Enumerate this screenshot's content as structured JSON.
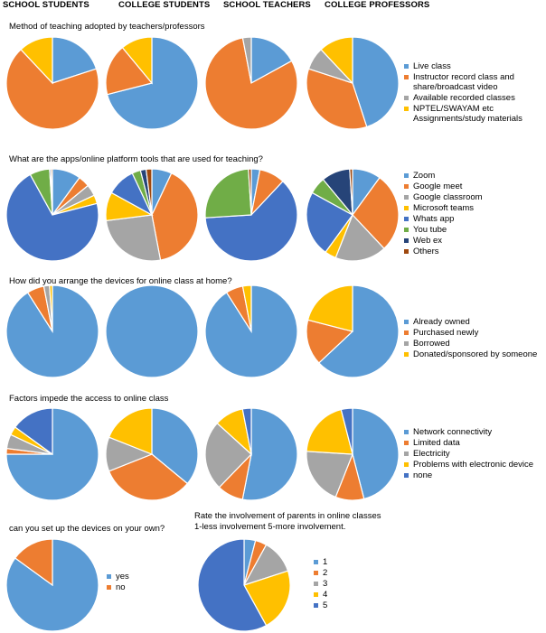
{
  "column_headers": [
    "SCHOOL  STUDENTS",
    "COLLEGE  STUDENTS",
    "SCHOOL  TEACHERS",
    "COLLEGE  PROFESSORS"
  ],
  "colors": [
    "#5b9bd5",
    "#ed7d31",
    "#a5a5a5",
    "#ffc000",
    "#4472c4",
    "#70ad47",
    "#264478",
    "#9e480e"
  ],
  "chart_data": [
    {
      "type": "pie",
      "title": "Method of teaching adopted by teachers/professors",
      "legend": [
        "Live class",
        "Instructor record class and\nshare/broadcast video",
        "Available recorded classes",
        "NPTEL/SWAYAM etc\nAssignments/study materials"
      ],
      "series": [
        {
          "name": "SCHOOL STUDENTS",
          "values": [
            20,
            68,
            0,
            12
          ]
        },
        {
          "name": "COLLEGE STUDENTS",
          "values": [
            71,
            18,
            0,
            11
          ]
        },
        {
          "name": "SCHOOL TEACHERS",
          "values": [
            17,
            80,
            3,
            0
          ]
        },
        {
          "name": "COLLEGE PROFESSORS",
          "values": [
            45,
            35,
            8,
            12
          ]
        }
      ]
    },
    {
      "type": "pie",
      "title": "What are the apps/online platform tools  that are used for teaching?",
      "legend": [
        "Zoom",
        "Google meet",
        "Google classroom",
        "Microsoft teams",
        "Whats app",
        "You tube",
        "Web ex",
        "Others"
      ],
      "series": [
        {
          "name": "SCHOOL STUDENTS",
          "values": [
            10,
            4,
            4,
            3,
            71,
            7,
            0.5,
            0.5
          ]
        },
        {
          "name": "COLLEGE STUDENTS",
          "values": [
            7,
            40,
            26,
            10,
            10,
            3,
            2,
            2
          ]
        },
        {
          "name": "SCHOOL TEACHERS",
          "values": [
            3,
            9,
            0,
            0,
            62,
            25,
            0,
            1
          ]
        },
        {
          "name": "COLLEGE PROFESSORS",
          "values": [
            10,
            28,
            18,
            4,
            23,
            6,
            10,
            1
          ]
        }
      ]
    },
    {
      "type": "pie",
      "title": "How did you arrange the devices for online class at home?",
      "legend": [
        "Already owned",
        "Purchased newly",
        "Borrowed",
        "Donated/sponsored  by someone"
      ],
      "series": [
        {
          "name": "SCHOOL STUDENTS",
          "values": [
            91,
            6,
            2,
            1
          ]
        },
        {
          "name": "COLLEGE STUDENTS",
          "values": [
            100,
            0,
            0,
            0
          ]
        },
        {
          "name": "SCHOOL TEACHERS",
          "values": [
            91,
            6,
            0,
            3
          ]
        },
        {
          "name": "COLLEGE PROFESSORS",
          "values": [
            63,
            16,
            0,
            21
          ]
        }
      ]
    },
    {
      "type": "pie",
      "title": "Factors impede the access to online class",
      "legend": [
        "Network connectivity",
        "Limited data",
        "Electricity",
        "Problems with electronic device",
        "none"
      ],
      "series": [
        {
          "name": "SCHOOL STUDENTS",
          "values": [
            75,
            2,
            5,
            3,
            15
          ]
        },
        {
          "name": "COLLEGE STUDENTS",
          "values": [
            36,
            33,
            12,
            19,
            0
          ]
        },
        {
          "name": "SCHOOL TEACHERS",
          "values": [
            52,
            9,
            24,
            10,
            3
          ]
        },
        {
          "name": "COLLEGE PROFESSORS",
          "values": [
            46,
            10,
            20,
            20,
            4
          ]
        }
      ]
    },
    {
      "type": "pie",
      "title": "can you set up the devices on your own?",
      "legend": [
        "yes",
        "no"
      ],
      "series": [
        {
          "name": "SCHOOL STUDENTS",
          "values": [
            85,
            15
          ]
        }
      ]
    },
    {
      "type": "pie",
      "title": "Rate the involvement  of parents in online classes\n1-less involvement  5-more involvement.",
      "legend": [
        "1",
        "2",
        "3",
        "4",
        "5"
      ],
      "series": [
        {
          "name": "COLLEGE STUDENTS",
          "values": [
            4,
            4,
            12,
            22,
            58
          ]
        }
      ]
    }
  ]
}
